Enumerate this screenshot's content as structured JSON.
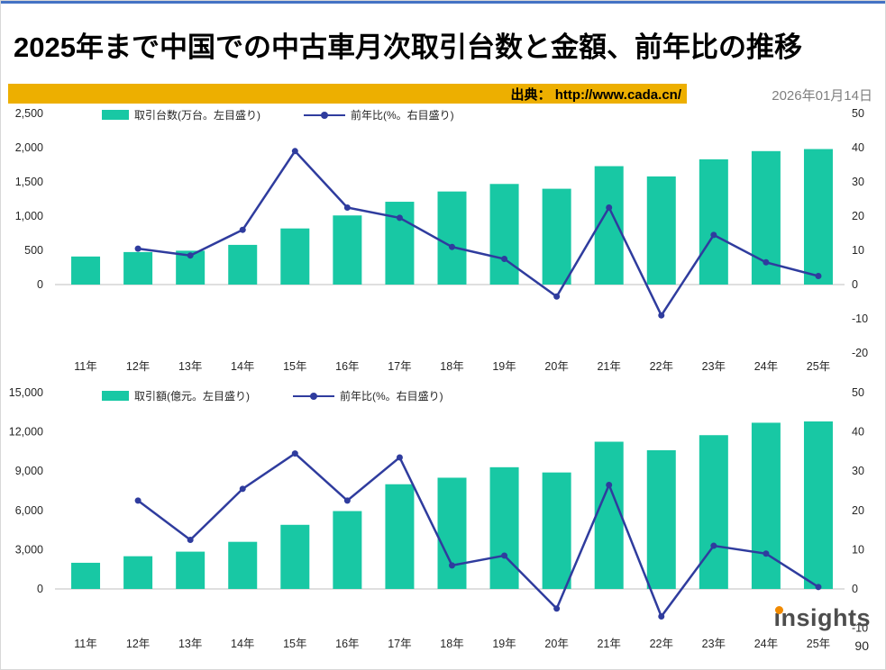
{
  "header": {
    "title": "2025年まで中国での中古車月次取引台数と金額、前年比の推移",
    "source": "出典： http://www.cada.cn/",
    "date": "2026年01月14日"
  },
  "footer": {
    "logo": "insights",
    "page_number": "90"
  },
  "colors": {
    "bar": "#18C8A4",
    "line": "#2F3C9E",
    "source_bar": "#EDAF00",
    "accent_orange": "#F18A00",
    "date_gray": "#7F7F7F",
    "logo_gray": "#4D4D4D",
    "top_rule": "#4472C4"
  },
  "chart_data": [
    {
      "type": "bar+line",
      "bar_legend": "取引台数(万台。左目盛り)",
      "line_legend": "前年比(%。右目盛り)",
      "categories": [
        "11年",
        "12年",
        "13年",
        "14年",
        "15年",
        "16年",
        "17年",
        "18年",
        "19年",
        "20年",
        "21年",
        "22年",
        "23年",
        "24年",
        "25年"
      ],
      "bars": [
        410,
        475,
        495,
        580,
        820,
        1010,
        1210,
        1360,
        1470,
        1400,
        1730,
        1580,
        1830,
        1950,
        1980
      ],
      "line": [
        null,
        10.5,
        8.5,
        16,
        39,
        22.5,
        19.5,
        11,
        7.5,
        -3.5,
        22.5,
        -9,
        14.5,
        6.5,
        2.5
      ],
      "left_axis": {
        "min": 0,
        "max": 2500,
        "ticks": [
          2500,
          2000,
          1500,
          1000,
          500,
          0
        ]
      },
      "right_axis": {
        "min": -20,
        "max": 50,
        "ticks": [
          50,
          40,
          30,
          20,
          10,
          0,
          -10,
          -20
        ]
      }
    },
    {
      "type": "bar+line",
      "bar_legend": "取引額(億元。左目盛り)",
      "line_legend": "前年比(%。右目盛り)",
      "categories": [
        "11年",
        "12年",
        "13年",
        "14年",
        "15年",
        "16年",
        "17年",
        "18年",
        "19年",
        "20年",
        "21年",
        "22年",
        "23年",
        "24年",
        "25年"
      ],
      "bars": [
        2000,
        2500,
        2850,
        3600,
        4900,
        5950,
        8000,
        8500,
        9300,
        8900,
        11250,
        10600,
        11750,
        12700,
        12800
      ],
      "line": [
        null,
        22.5,
        12.5,
        25.5,
        34.5,
        22.5,
        33.5,
        6,
        8.5,
        -5,
        26.5,
        -7,
        11,
        9,
        0.5
      ],
      "left_axis": {
        "min": 0,
        "max": 15000,
        "ticks": [
          15000,
          12000,
          9000,
          6000,
          3000,
          0
        ]
      },
      "right_axis": {
        "min": -10,
        "max": 50,
        "ticks": [
          50,
          40,
          30,
          20,
          10,
          0,
          -10
        ]
      }
    }
  ]
}
